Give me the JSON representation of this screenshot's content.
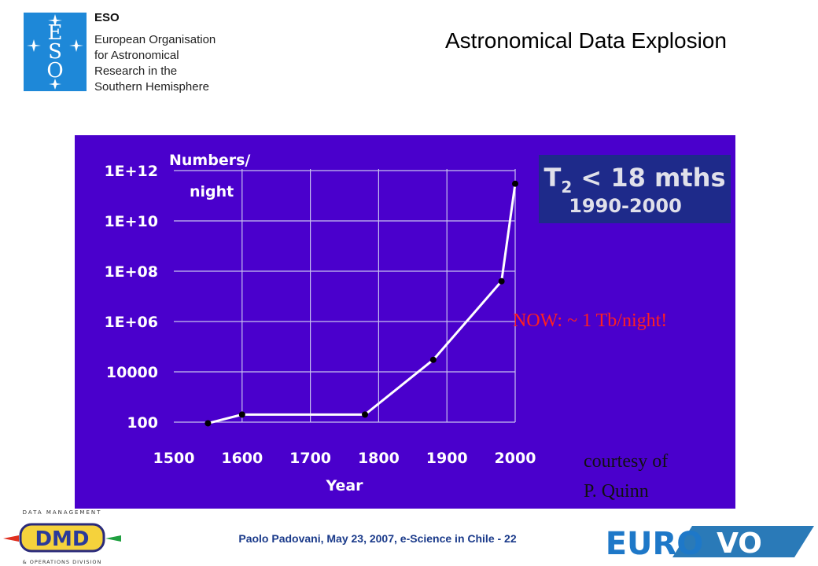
{
  "header": {
    "org_short": "ESO",
    "org_lines": [
      "European Organisation",
      "for Astronomical",
      "Research in the",
      "Southern Hemisphere"
    ],
    "logo_letters": [
      "E",
      "S",
      "O"
    ],
    "title": "Astronomical Data Explosion"
  },
  "chart_data": {
    "type": "line",
    "ylabel_lines": [
      "Numbers/",
      "night"
    ],
    "xlabel": "Year",
    "y_scale": "log",
    "x_ticks": [
      "1500",
      "1600",
      "1700",
      "1800",
      "1900",
      "2000"
    ],
    "x_tick_values": [
      1500,
      1600,
      1700,
      1800,
      1900,
      2000
    ],
    "y_ticks": [
      "1E+12",
      "1E+10",
      "1E+08",
      "1E+06",
      "10000",
      "100"
    ],
    "y_tick_values": [
      1000000000000.0,
      10000000000.0,
      100000000.0,
      1000000.0,
      10000,
      100
    ],
    "xlim": [
      1500,
      2000
    ],
    "ylim": [
      100,
      1000000000000.0
    ],
    "grid": true,
    "series": [
      {
        "x": [
          1550,
          1600,
          1780,
          1880,
          1980,
          2000
        ],
        "y": [
          90,
          200,
          200,
          30000.0,
          40000000.0,
          300000000000.0
        ]
      }
    ],
    "inset": {
      "line1_main": "T",
      "line1_sub": "2",
      "line1_rest": " < 18 mths",
      "line2": "1990-2000"
    },
    "annotations": {
      "now": "NOW: ~ 1 Tb/night!",
      "courtesy_lines": [
        "courtesy of",
        "P. Quinn"
      ]
    },
    "colors": {
      "background": "#4a00cc",
      "line": "#ffffff",
      "grid": "#c8c0f0",
      "inset": "#1e2a8a",
      "annotation": "#ff2020"
    }
  },
  "footer": {
    "text": "Paolo Padovani, May 23, 2007, e-Science in Chile - 22",
    "dmd_top": "DATA MANAGEMENT",
    "dmd_bottom": "& OPERATIONS DIVISION",
    "dmd_letters": "DMD",
    "euro_text": "EURO",
    "vo_text": "VO"
  }
}
